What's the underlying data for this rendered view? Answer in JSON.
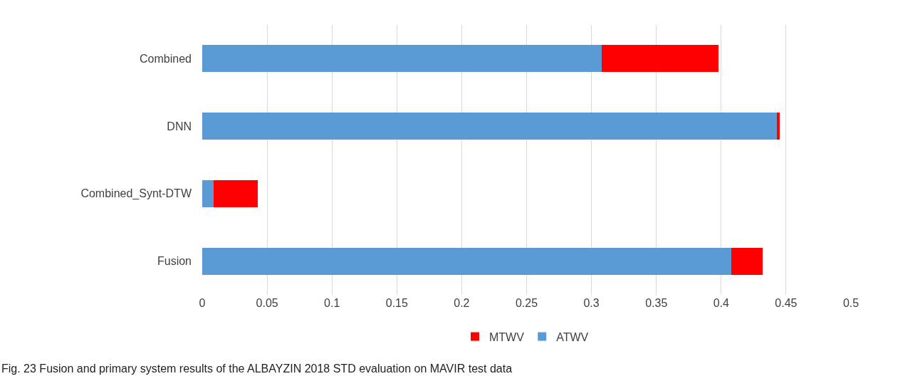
{
  "chart_data": {
    "type": "bar",
    "orientation": "horizontal",
    "stacked": true,
    "categories": [
      "Combined",
      "DNN",
      "Combined_Synt-DTW",
      "Fusion"
    ],
    "series": [
      {
        "name": "ATWV",
        "color": "#5b9bd5",
        "values": [
          0.308,
          0.443,
          0.009,
          0.408
        ]
      },
      {
        "name": "MTWV",
        "color": "#ff0000",
        "values": [
          0.09,
          0.002,
          0.034,
          0.024
        ]
      }
    ],
    "xlim": [
      0,
      0.5
    ],
    "xticks": [
      0,
      0.05,
      0.1,
      0.15,
      0.2,
      0.25,
      0.3,
      0.35,
      0.4,
      0.45,
      0.5
    ],
    "grid": "x",
    "legend": "bottom",
    "annotations": [
      "Fig. 23 Fusion and primary system results of the ALBAYZIN 2018 STD evaluation on MAVIR test data"
    ]
  }
}
